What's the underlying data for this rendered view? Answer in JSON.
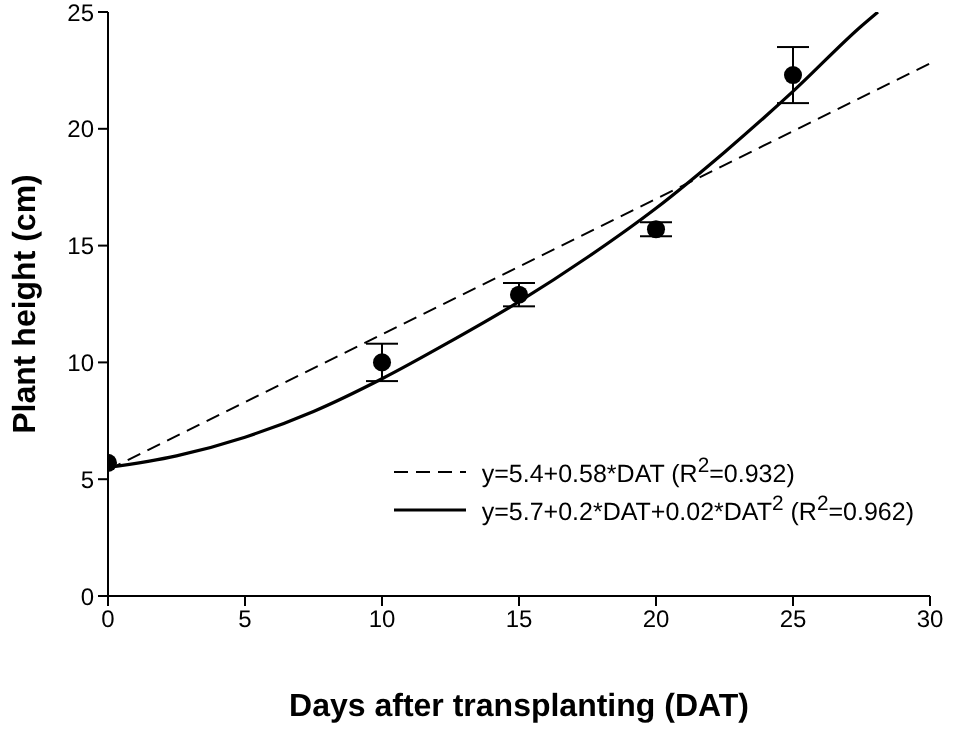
{
  "chart_data": {
    "type": "scatter",
    "xlabel": "Days after transplanting (DAT)",
    "ylabel": "Plant height (cm)",
    "xlim": [
      0,
      30
    ],
    "ylim": [
      0,
      25
    ],
    "xticks": [
      0,
      5,
      10,
      15,
      20,
      25,
      30
    ],
    "yticks": [
      0,
      5,
      10,
      15,
      20,
      25
    ],
    "grid": false,
    "legend": "bottom right",
    "series": [
      {
        "color": "#000000",
        "marker": "circle",
        "x": [
          0,
          10,
          15,
          20,
          25
        ],
        "values": [
          5.7,
          10.0,
          12.9,
          15.7,
          22.3
        ],
        "errors": [
          null,
          0.8,
          0.5,
          0.3,
          1.2
        ]
      },
      {
        "type": "line",
        "name": "y=5.4+0.58*DAT (R$^{2}$=0.932)",
        "color": "#000000",
        "marker": "none",
        "line_style": "dashed",
        "x": [
          0,
          30
        ],
        "values": [
          5.4,
          22.8
        ]
      },
      {
        "type": "line",
        "name": "y=5.7+0.2*DAT+0.02*DAT$^{2}$ (R$^{2}$=0.962)",
        "color": "#000000",
        "marker": "none",
        "line_style": "solid",
        "x": [
          0,
          2.5,
          5,
          7.5,
          10,
          12.5,
          15,
          17.5,
          20,
          22.5,
          25,
          27.5,
          28.1
        ],
        "values": [
          5.5,
          6.0,
          6.8,
          7.9,
          9.3,
          10.9,
          12.6,
          14.5,
          16.6,
          19.0,
          21.6,
          24.4,
          25
        ]
      }
    ]
  }
}
